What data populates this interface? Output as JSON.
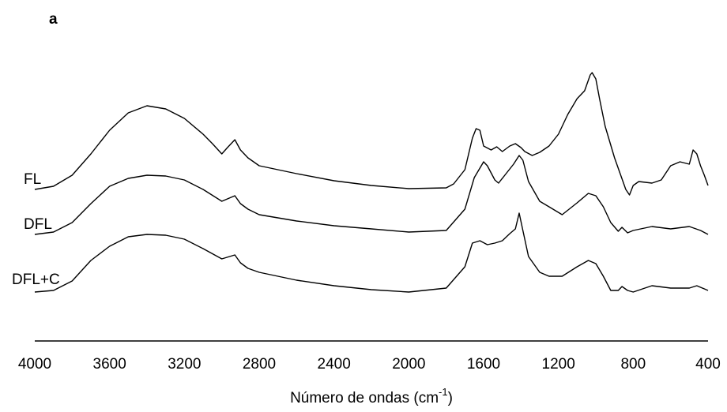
{
  "chart_data": {
    "type": "line",
    "panel": "a",
    "x_label": {
      "text": "Número de ondas (cm",
      "sup": "-1",
      "end": ")"
    },
    "xlim": [
      4000,
      400
    ],
    "xticks": [
      4000,
      3600,
      3200,
      2800,
      2400,
      2000,
      1600,
      1200,
      800,
      400
    ],
    "ylim": [
      0,
      350
    ],
    "series": [
      {
        "name": "FL",
        "color": "#000000",
        "x": [
          4000,
          3900,
          3800,
          3700,
          3600,
          3500,
          3400,
          3300,
          3200,
          3100,
          3050,
          3000,
          2970,
          2930,
          2900,
          2860,
          2800,
          2600,
          2400,
          2200,
          2000,
          1800,
          1760,
          1700,
          1660,
          1640,
          1620,
          1600,
          1560,
          1530,
          1500,
          1460,
          1430,
          1400,
          1380,
          1340,
          1300,
          1250,
          1200,
          1150,
          1100,
          1060,
          1030,
          1020,
          1000,
          980,
          950,
          900,
          870,
          840,
          820,
          800,
          770,
          700,
          650,
          600,
          550,
          500,
          480,
          460,
          440,
          420,
          400
        ],
        "values": [
          192,
          196,
          210,
          237,
          267,
          289,
          298,
          294,
          282,
          262,
          250,
          237,
          245,
          255,
          242,
          232,
          222,
          212,
          203,
          197,
          193,
          194,
          199,
          217,
          257,
          269,
          267,
          247,
          242,
          246,
          240,
          247,
          250,
          245,
          240,
          235,
          239,
          247,
          262,
          287,
          307,
          317,
          337,
          340,
          332,
          307,
          272,
          232,
          212,
          192,
          185,
          197,
          202,
          200,
          204,
          222,
          227,
          224,
          242,
          237,
          222,
          210,
          197
        ]
      },
      {
        "name": "DFL",
        "color": "#000000",
        "x": [
          4000,
          3900,
          3800,
          3700,
          3600,
          3500,
          3400,
          3300,
          3200,
          3100,
          3000,
          2930,
          2900,
          2860,
          2800,
          2600,
          2400,
          2200,
          2000,
          1800,
          1700,
          1650,
          1620,
          1600,
          1580,
          1540,
          1520,
          1480,
          1440,
          1410,
          1390,
          1360,
          1300,
          1250,
          1180,
          1100,
          1040,
          1000,
          960,
          920,
          880,
          860,
          830,
          800,
          700,
          600,
          500,
          440,
          400
        ],
        "values": [
          135,
          138,
          150,
          174,
          196,
          206,
          210,
          209,
          204,
          192,
          177,
          184,
          174,
          167,
          160,
          152,
          146,
          142,
          138,
          140,
          167,
          207,
          219,
          227,
          222,
          204,
          200,
          212,
          224,
          235,
          229,
          202,
          177,
          170,
          160,
          175,
          187,
          184,
          170,
          150,
          139,
          144,
          137,
          140,
          145,
          142,
          145,
          140,
          135
        ]
      },
      {
        "name": "DFL+C",
        "color": "#000000",
        "x": [
          4000,
          3900,
          3800,
          3700,
          3600,
          3500,
          3400,
          3300,
          3200,
          3100,
          3000,
          2930,
          2900,
          2860,
          2800,
          2600,
          2400,
          2200,
          2000,
          1800,
          1700,
          1660,
          1620,
          1580,
          1540,
          1500,
          1460,
          1430,
          1410,
          1390,
          1360,
          1300,
          1250,
          1180,
          1100,
          1040,
          1000,
          960,
          920,
          880,
          860,
          830,
          800,
          700,
          600,
          500,
          460,
          400
        ],
        "values": [
          62,
          64,
          76,
          102,
          120,
          132,
          135,
          134,
          129,
          117,
          104,
          109,
          99,
          92,
          87,
          77,
          70,
          65,
          62,
          67,
          94,
          124,
          127,
          122,
          124,
          127,
          136,
          142,
          162,
          140,
          107,
          87,
          82,
          82,
          94,
          102,
          98,
          82,
          64,
          64,
          69,
          64,
          62,
          70,
          67,
          67,
          70,
          64
        ]
      }
    ]
  }
}
